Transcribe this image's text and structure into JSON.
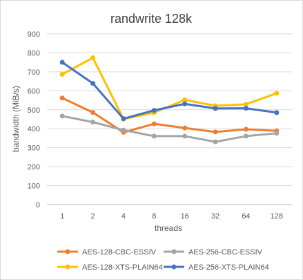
{
  "chart_data": {
    "type": "line",
    "title": "randwrite 128k",
    "xlabel": "threads",
    "ylabel": "bandwidth (MiB/s)",
    "categories": [
      "1",
      "2",
      "4",
      "8",
      "16",
      "32",
      "64",
      "128"
    ],
    "ylim": [
      0,
      900
    ],
    "yticks": [
      0,
      100,
      200,
      300,
      400,
      500,
      600,
      700,
      800,
      900
    ],
    "grid": true,
    "legend_position": "bottom",
    "series": [
      {
        "name": "AES-128-CBC-ESSIV",
        "color": "#ED7D31",
        "values": [
          562,
          486,
          381,
          426,
          404,
          383,
          397,
          389
        ]
      },
      {
        "name": "AES-256-CBC-ESSIV",
        "color": "#A5A5A5",
        "values": [
          467,
          435,
          393,
          361,
          361,
          331,
          361,
          376
        ]
      },
      {
        "name": "AES-128-XTS-PLAIN64",
        "color": "#FFC000",
        "values": [
          687,
          774,
          451,
          485,
          552,
          521,
          529,
          587
        ]
      },
      {
        "name": "AES-256-XTS-PLAIN64",
        "color": "#4472C4",
        "values": [
          750,
          639,
          453,
          497,
          531,
          507,
          508,
          485
        ]
      }
    ]
  }
}
